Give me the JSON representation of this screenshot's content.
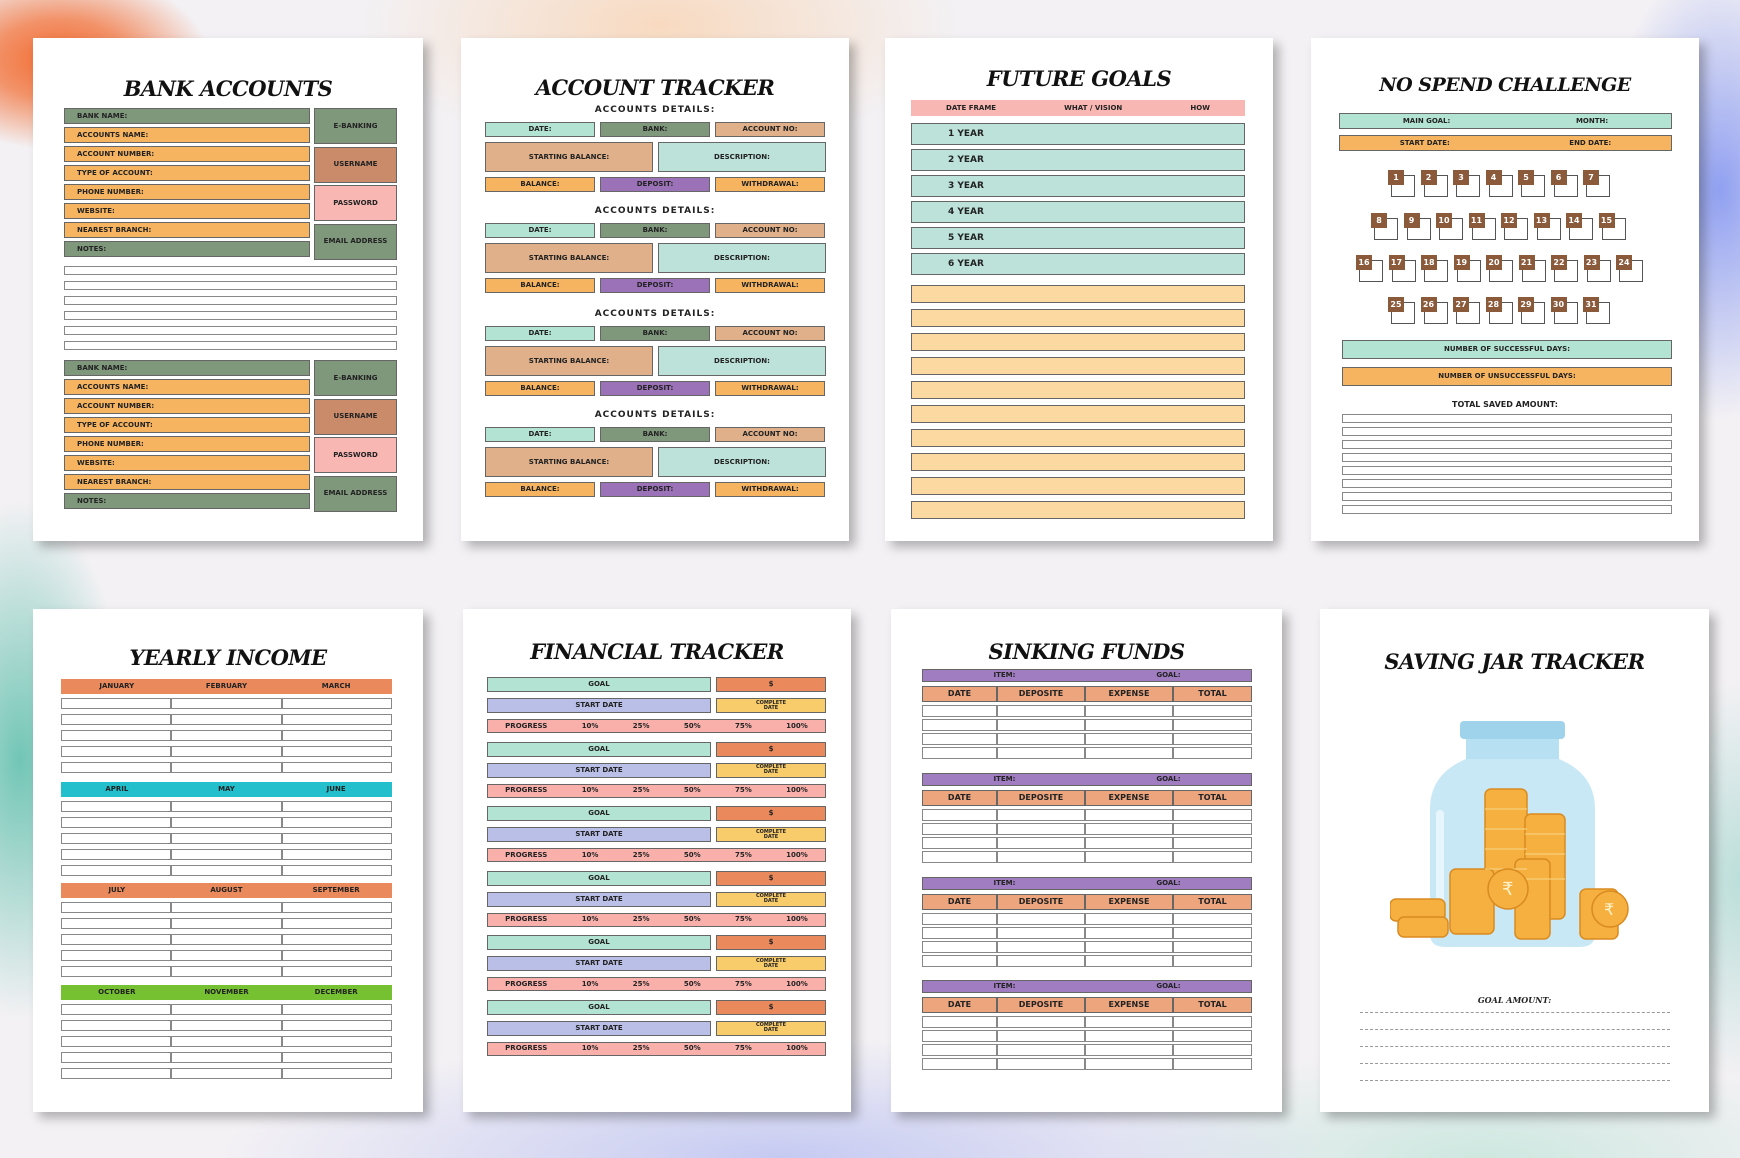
{
  "bank_accounts": {
    "title": "BANK ACCOUNTS",
    "fields": [
      "BANK NAME:",
      "ACCOUNTS NAME:",
      "ACCOUNT NUMBER:",
      "TYPE OF ACCOUNT:",
      "PHONE NUMBER:",
      "WEBSITE:",
      "NEAREST BRANCH:",
      "NOTES:"
    ],
    "side": [
      "E-BANKING",
      "USERNAME",
      "PASSWORD",
      "EMAIL ADDRESS"
    ]
  },
  "account_tracker": {
    "title": "ACCOUNT TRACKER",
    "section": "ACCOUNTS DETAILS:",
    "row1": [
      "DATE:",
      "BANK:",
      "ACCOUNT NO:"
    ],
    "row2": [
      "STARTING BALANCE:",
      "DESCRIPTION:"
    ],
    "row3": [
      "BALANCE:",
      "DEPOSIT:",
      "WITHDRAWAL:"
    ]
  },
  "future_goals": {
    "title": "FUTURE GOALS",
    "headers": [
      "DATE FRAME",
      "WHAT / VISION",
      "HOW"
    ],
    "years": [
      "1 YEAR",
      "2 YEAR",
      "3 YEAR",
      "4 YEAR",
      "5 YEAR",
      "6 YEAR"
    ]
  },
  "no_spend": {
    "title": "NO SPEND CHALLENGE",
    "main_goal": "MAIN GOAL:",
    "month": "MONTH:",
    "start_date": "START DATE:",
    "end_date": "END DATE:",
    "days_row1": [
      "1",
      "2",
      "3",
      "4",
      "5",
      "6",
      "7"
    ],
    "days_row2": [
      "8",
      "9",
      "10",
      "11",
      "12",
      "13",
      "14",
      "15"
    ],
    "days_row3": [
      "16",
      "17",
      "18",
      "19",
      "20",
      "21",
      "22",
      "23",
      "24"
    ],
    "days_row4": [
      "25",
      "26",
      "27",
      "28",
      "29",
      "30",
      "31"
    ],
    "successful": "NUMBER OF SUCCESSFUL DAYS:",
    "unsuccessful": "NUMBER OF UNSUCCESSFUL DAYS:",
    "total": "TOTAL SAVED AMOUNT:"
  },
  "yearly_income": {
    "title": "YEARLY INCOME",
    "quarters": [
      [
        "JANUARY",
        "FEBRUARY",
        "MARCH"
      ],
      [
        "APRIL",
        "MAY",
        "JUNE"
      ],
      [
        "JULY",
        "AUGUST",
        "SEPTEMBER"
      ],
      [
        "OCTOBER",
        "NOVEMBER",
        "DECEMBER"
      ]
    ],
    "colors": [
      "#e9895c",
      "#23bfcc",
      "#e9895c",
      "#76c132"
    ]
  },
  "financial_tracker": {
    "title": "FINANCIAL TRACKER",
    "goal": "GOAL",
    "dollar": "$",
    "start_date": "START DATE",
    "complete_date": "COMPLETE DATE",
    "progress": "PROGRESS",
    "steps": [
      "10%",
      "25%",
      "50%",
      "75%",
      "100%"
    ]
  },
  "sinking_funds": {
    "title": "SINKING FUNDS",
    "item": "ITEM:",
    "goal": "GOAL:",
    "columns": [
      "DATE",
      "DEPOSITE",
      "EXPENSE",
      "TOTAL"
    ]
  },
  "saving_jar": {
    "title": "SAVING JAR TRACKER",
    "goal_amount": "GOAL AMOUNT:"
  }
}
